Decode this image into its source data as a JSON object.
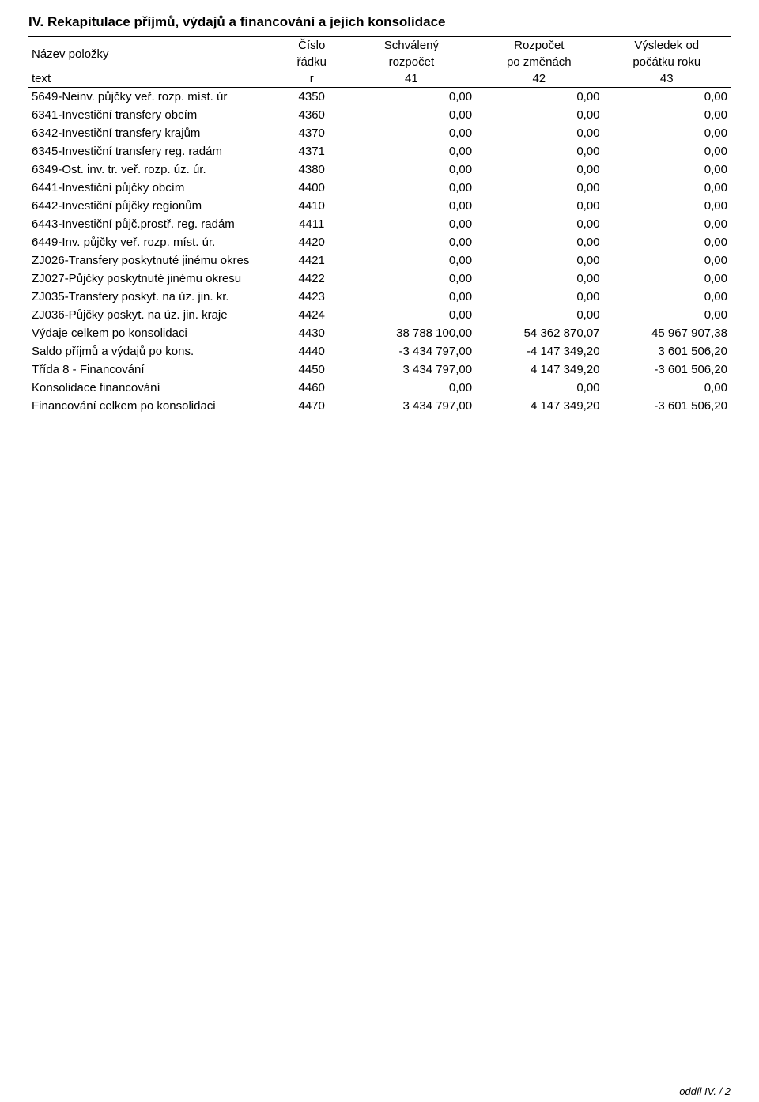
{
  "title": "IV. Rekapitulace příjmů, výdajů a financování a jejich konsolidace",
  "header": {
    "name": "Název položky",
    "col_r_top": "Číslo",
    "col_r_bot": "řádku",
    "col_v1_top": "Schválený",
    "col_v1_bot": "rozpočet",
    "col_v2_top": "Rozpočet",
    "col_v2_bot": "po změnách",
    "col_v3_top": "Výsledek od",
    "col_v3_bot": "počátku roku",
    "text_label": "text",
    "r_label": "r",
    "v1_label": "41",
    "v2_label": "42",
    "v3_label": "43"
  },
  "rows": [
    {
      "name": "5649-Neinv. půjčky veř. rozp. míst. úr",
      "r": "4350",
      "v1": "0,00",
      "v2": "0,00",
      "v3": "0,00"
    },
    {
      "name": "6341-Investiční transfery obcím",
      "r": "4360",
      "v1": "0,00",
      "v2": "0,00",
      "v3": "0,00"
    },
    {
      "name": "6342-Investiční transfery krajům",
      "r": "4370",
      "v1": "0,00",
      "v2": "0,00",
      "v3": "0,00"
    },
    {
      "name": "6345-Investiční transfery reg. radám",
      "r": "4371",
      "v1": "0,00",
      "v2": "0,00",
      "v3": "0,00"
    },
    {
      "name": "6349-Ost. inv. tr. veř. rozp. úz. úr.",
      "r": "4380",
      "v1": "0,00",
      "v2": "0,00",
      "v3": "0,00"
    },
    {
      "name": "6441-Investiční půjčky obcím",
      "r": "4400",
      "v1": "0,00",
      "v2": "0,00",
      "v3": "0,00"
    },
    {
      "name": "6442-Investiční půjčky regionům",
      "r": "4410",
      "v1": "0,00",
      "v2": "0,00",
      "v3": "0,00"
    },
    {
      "name": "6443-Investiční půjč.prostř. reg. radám",
      "r": "4411",
      "v1": "0,00",
      "v2": "0,00",
      "v3": "0,00"
    },
    {
      "name": "6449-Inv. půjčky veř. rozp. míst. úr.",
      "r": "4420",
      "v1": "0,00",
      "v2": "0,00",
      "v3": "0,00"
    },
    {
      "name": "ZJ026-Transfery poskytnuté jinému okres",
      "r": "4421",
      "v1": "0,00",
      "v2": "0,00",
      "v3": "0,00"
    },
    {
      "name": "ZJ027-Půjčky poskytnuté jinému okresu",
      "r": "4422",
      "v1": "0,00",
      "v2": "0,00",
      "v3": "0,00"
    },
    {
      "name": "ZJ035-Transfery poskyt. na úz. jin. kr.",
      "r": "4423",
      "v1": "0,00",
      "v2": "0,00",
      "v3": "0,00"
    },
    {
      "name": "ZJ036-Půjčky poskyt. na úz. jin. kraje",
      "r": "4424",
      "v1": "0,00",
      "v2": "0,00",
      "v3": "0,00"
    },
    {
      "name": "Výdaje celkem po konsolidaci",
      "r": "4430",
      "v1": "38 788 100,00",
      "v2": "54 362 870,07",
      "v3": "45 967 907,38"
    },
    {
      "name": "Saldo příjmů a výdajů po kons.",
      "r": "4440",
      "v1": "-3 434 797,00",
      "v2": "-4 147 349,20",
      "v3": "3 601 506,20"
    },
    {
      "name": "Třída 8 - Financování",
      "r": "4450",
      "v1": "3 434 797,00",
      "v2": "4 147 349,20",
      "v3": "-3 601 506,20"
    },
    {
      "name": "Konsolidace financování",
      "r": "4460",
      "v1": "0,00",
      "v2": "0,00",
      "v3": "0,00"
    },
    {
      "name": "Financování celkem po konsolidaci",
      "r": "4470",
      "v1": "3 434 797,00",
      "v2": "4 147 349,20",
      "v3": "-3 601 506,20"
    }
  ],
  "footer": "oddíl IV. / 2"
}
